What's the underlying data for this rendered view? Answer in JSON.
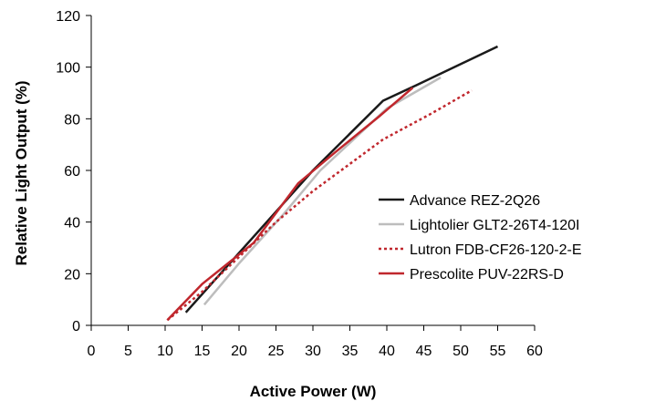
{
  "chart_data": {
    "type": "line",
    "title": "",
    "xlabel": "Active Power (W)",
    "ylabel": "Relative Light Output (%)",
    "xlim": [
      0,
      60
    ],
    "ylim": [
      0,
      120
    ],
    "xticks": [
      0,
      5,
      10,
      15,
      20,
      25,
      30,
      35,
      40,
      45,
      50,
      55,
      60
    ],
    "yticks": [
      0,
      20,
      40,
      60,
      80,
      100,
      120
    ],
    "grid": false,
    "legend_position": "right",
    "series": [
      {
        "name": "Advance REZ-2Q26",
        "color": "#1a1a1a",
        "style": "solid",
        "points": [
          [
            12.8,
            5
          ],
          [
            25,
            44
          ],
          [
            30,
            60
          ],
          [
            39.5,
            87
          ],
          [
            44,
            93
          ],
          [
            55,
            108
          ]
        ]
      },
      {
        "name": "Lightolier GLT2-26T4-120I",
        "color": "#bdbdbd",
        "style": "solid",
        "points": [
          [
            15.3,
            8
          ],
          [
            20,
            24
          ],
          [
            26,
            43
          ],
          [
            31,
            60
          ],
          [
            40,
            84
          ],
          [
            47.3,
            96
          ]
        ]
      },
      {
        "name": "Lutron FDB-CF26-120-2-E",
        "color": "#c0272d",
        "style": "dotted",
        "points": [
          [
            10.3,
            2
          ],
          [
            15,
            13
          ],
          [
            25,
            40
          ],
          [
            30,
            52
          ],
          [
            39.5,
            72
          ],
          [
            46,
            82
          ],
          [
            51.5,
            91
          ]
        ]
      },
      {
        "name": "Prescolite PUV-22RS-D",
        "color": "#c0272d",
        "style": "solid",
        "points": [
          [
            10.3,
            2
          ],
          [
            15,
            16
          ],
          [
            22,
            32
          ],
          [
            28,
            55
          ],
          [
            33,
            67
          ],
          [
            39,
            81
          ],
          [
            43.5,
            92
          ]
        ]
      }
    ]
  }
}
